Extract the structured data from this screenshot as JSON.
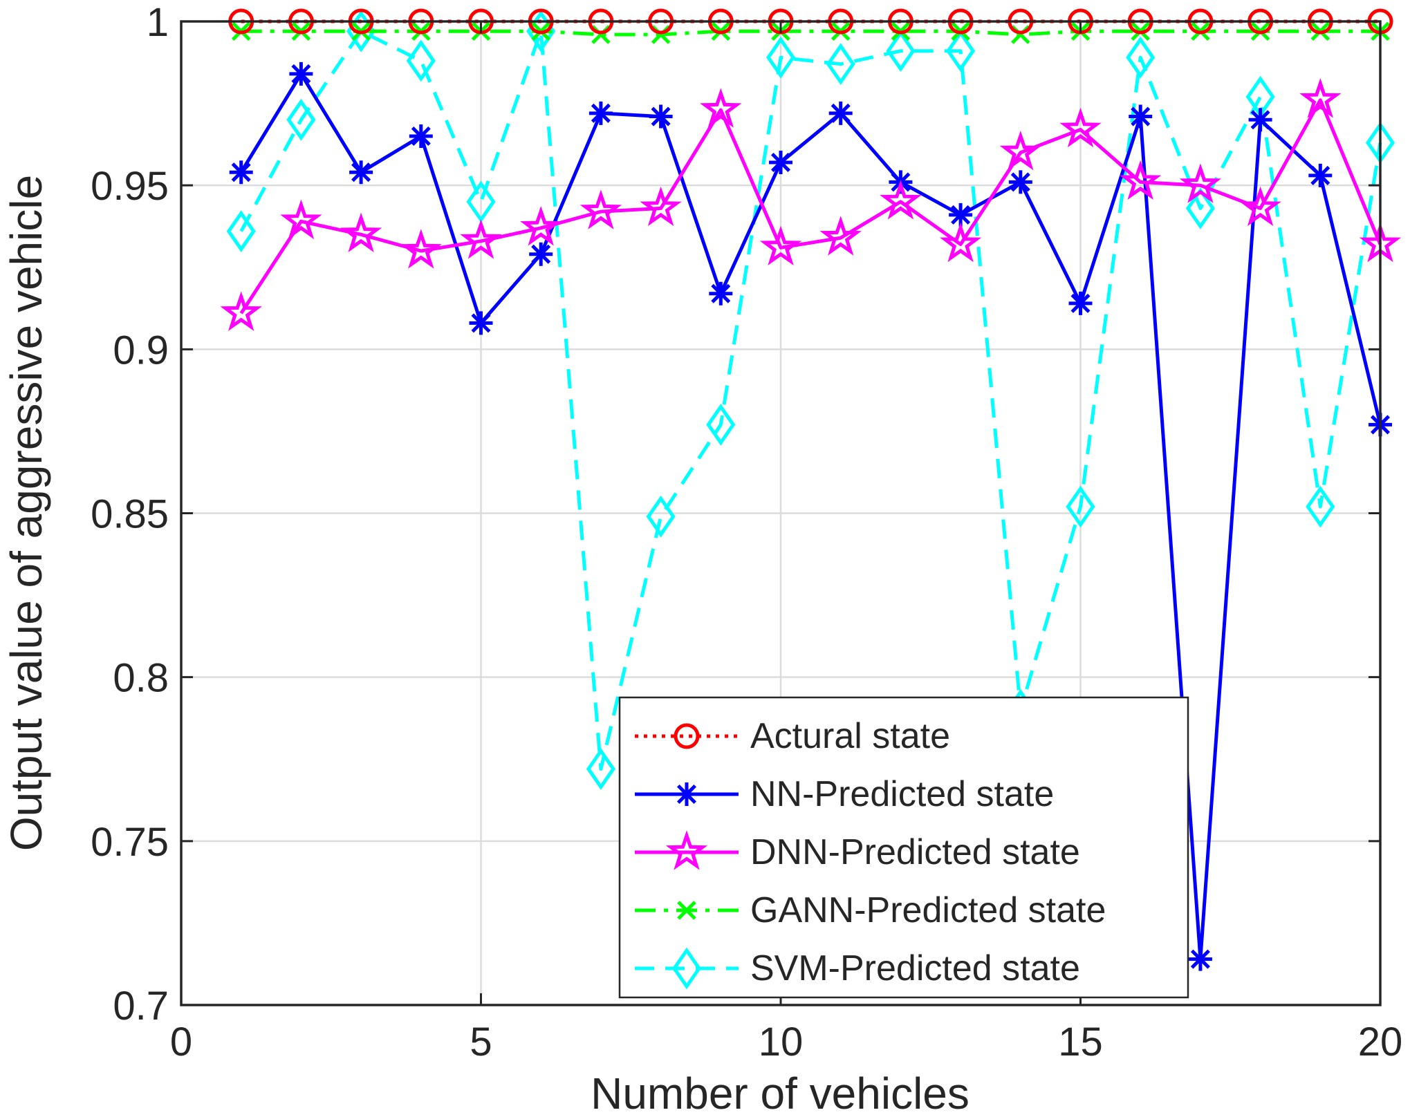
{
  "chart_data": {
    "type": "line",
    "xlabel": "Number of vehicles",
    "ylabel": "Output value of aggressive vehicle",
    "xlim": [
      0,
      20
    ],
    "ylim": [
      0.7,
      1
    ],
    "xticks": [
      0,
      5,
      10,
      15,
      20
    ],
    "yticks": [
      0.7,
      0.75,
      0.8,
      0.85,
      0.9,
      0.95,
      1
    ],
    "xtick_labels": [
      "0",
      "5",
      "10",
      "15",
      "20"
    ],
    "ytick_labels": [
      "0.7",
      "0.75",
      "0.8",
      "0.85",
      "0.9",
      "0.95",
      "1"
    ],
    "grid": true,
    "legend_position": "bottom-center",
    "x": [
      1,
      2,
      3,
      4,
      5,
      6,
      7,
      8,
      9,
      10,
      11,
      12,
      13,
      14,
      15,
      16,
      17,
      18,
      19,
      20
    ],
    "series": [
      {
        "name": "Actural state",
        "color": "#ff0000",
        "line_style": "dotted",
        "marker": "circle",
        "values": [
          1,
          1,
          1,
          1,
          1,
          1,
          1,
          1,
          1,
          1,
          1,
          1,
          1,
          1,
          1,
          1,
          1,
          1,
          1,
          1
        ]
      },
      {
        "name": "NN-Predicted state",
        "color": "#0000ff",
        "line_style": "solid",
        "marker": "asterisk",
        "values": [
          0.954,
          0.984,
          0.954,
          0.965,
          0.908,
          0.929,
          0.972,
          0.971,
          0.917,
          0.957,
          0.972,
          0.951,
          0.941,
          0.951,
          0.914,
          0.971,
          0.714,
          0.97,
          0.953,
          0.877
        ]
      },
      {
        "name": "DNN-Predicted state",
        "color": "#ff00ff",
        "line_style": "solid",
        "marker": "pentagram",
        "values": [
          0.911,
          0.939,
          0.935,
          0.93,
          0.933,
          0.937,
          0.942,
          0.943,
          0.973,
          0.931,
          0.934,
          0.945,
          0.932,
          0.96,
          0.967,
          0.951,
          0.95,
          0.943,
          0.976,
          0.932
        ]
      },
      {
        "name": "GANN-Predicted state",
        "color": "#00ff00",
        "line_style": "dashdot",
        "marker": "x",
        "values": [
          0.997,
          0.997,
          0.997,
          0.997,
          0.997,
          0.997,
          0.996,
          0.996,
          0.997,
          0.997,
          0.997,
          0.997,
          0.997,
          0.996,
          0.997,
          0.997,
          0.997,
          0.997,
          0.997,
          0.997
        ]
      },
      {
        "name": "SVM-Predicted state",
        "color": "#00ffff",
        "line_style": "dashed",
        "marker": "diamond",
        "values": [
          0.936,
          0.97,
          0.997,
          0.988,
          0.945,
          0.997,
          0.772,
          0.849,
          0.877,
          0.989,
          0.987,
          0.991,
          0.991,
          0.79,
          0.852,
          0.989,
          0.943,
          0.977,
          0.852,
          0.963
        ]
      }
    ]
  }
}
